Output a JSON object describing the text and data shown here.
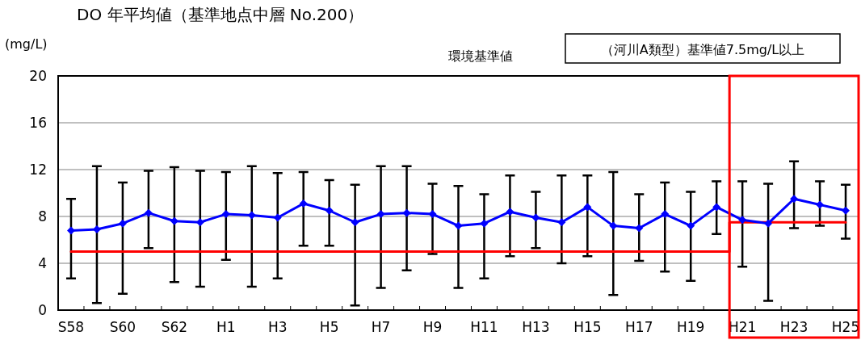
{
  "chart_data": {
    "type": "line",
    "title": "DO 年平均値（基準地点中層 No.200）",
    "ylabel": "(mg/L)",
    "annotations": [
      "環境基準値",
      "（河川A類型）基準値7.5mg/L以上"
    ],
    "categories": [
      "S58",
      null,
      "S60",
      null,
      "S62",
      null,
      "H1",
      null,
      "H3",
      null,
      "H5",
      null,
      "H7",
      null,
      "H9",
      null,
      "H11",
      null,
      "H13",
      null,
      "H15",
      null,
      "H17",
      null,
      "H19",
      null,
      "H21",
      null,
      "H23",
      null,
      "H25"
    ],
    "ylim": [
      0,
      20
    ],
    "yticks": [
      0,
      4,
      8,
      12,
      16,
      20
    ],
    "grid": "y",
    "marker": "diamond",
    "line_style": "solid",
    "series": [
      {
        "type": "step",
        "color": "#ff0000",
        "marker": "none",
        "values": [
          5,
          5,
          5,
          5,
          5,
          5,
          5,
          5,
          5,
          5,
          5,
          5,
          5,
          5,
          5,
          5,
          5,
          5,
          5,
          5,
          5,
          5,
          5,
          5,
          5,
          5,
          7.5,
          7.5,
          7.5,
          7.5,
          7.5
        ]
      },
      {
        "color": "#0000ff",
        "values": [
          6.8,
          6.9,
          7.4,
          8.3,
          7.6,
          7.5,
          8.2,
          8.1,
          7.9,
          9.1,
          8.5,
          7.5,
          8.2,
          8.3,
          8.2,
          7.2,
          7.4,
          8.4,
          7.9,
          7.5,
          8.8,
          7.2,
          7.0,
          8.2,
          7.2,
          8.8,
          7.7,
          7.4,
          9.5,
          9.0,
          8.5
        ],
        "errors": [
          [
            2.7,
            9.5
          ],
          [
            0.6,
            12.3
          ],
          [
            1.4,
            10.9
          ],
          [
            5.3,
            11.9
          ],
          [
            2.4,
            12.2
          ],
          [
            2.0,
            11.9
          ],
          [
            4.3,
            11.8
          ],
          [
            2.0,
            12.3
          ],
          [
            2.7,
            11.7
          ],
          [
            5.5,
            11.8
          ],
          [
            5.5,
            11.1
          ],
          [
            0.4,
            10.7
          ],
          [
            1.9,
            12.3
          ],
          [
            3.4,
            12.3
          ],
          [
            4.8,
            10.8
          ],
          [
            1.9,
            10.6
          ],
          [
            2.7,
            9.9
          ],
          [
            4.6,
            11.5
          ],
          [
            5.3,
            10.1
          ],
          [
            4.0,
            11.5
          ],
          [
            4.6,
            11.5
          ],
          [
            1.3,
            11.8
          ],
          [
            4.2,
            9.9
          ],
          [
            3.3,
            10.9
          ],
          [
            2.5,
            10.1
          ],
          [
            6.5,
            11.0
          ],
          [
            3.7,
            11.0
          ],
          [
            0.8,
            10.8
          ],
          [
            7.0,
            12.7
          ],
          [
            7.2,
            11.0
          ],
          [
            6.1,
            10.7
          ]
        ]
      }
    ]
  }
}
